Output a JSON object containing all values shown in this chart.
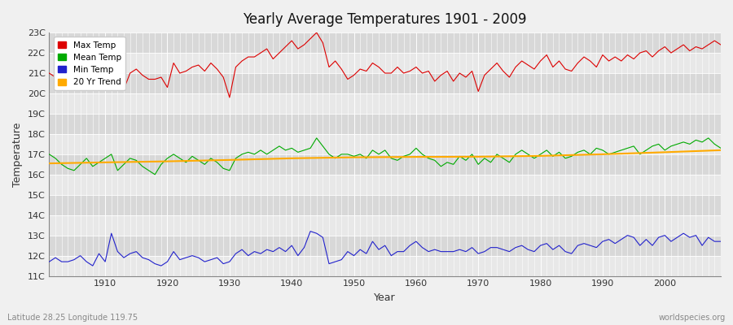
{
  "title": "Yearly Average Temperatures 1901 - 2009",
  "xlabel": "Year",
  "ylabel": "Temperature",
  "xlim": [
    1901,
    2009
  ],
  "ylim": [
    11,
    23
  ],
  "yticks": [
    11,
    12,
    13,
    14,
    15,
    16,
    17,
    18,
    19,
    20,
    21,
    22,
    23
  ],
  "ytick_labels": [
    "11C",
    "12C",
    "13C",
    "14C",
    "15C",
    "16C",
    "17C",
    "18C",
    "19C",
    "20C",
    "21C",
    "22C",
    "23C"
  ],
  "xticks": [
    1910,
    1920,
    1930,
    1940,
    1950,
    1960,
    1970,
    1980,
    1990,
    2000
  ],
  "max_temp_color": "#dd0000",
  "mean_temp_color": "#00aa00",
  "min_temp_color": "#2222cc",
  "trend_color": "#ffaa00",
  "fig_bg_color": "#f0f0f0",
  "plot_bg_color": "#e8e8e8",
  "band_light": "#e8e8e8",
  "band_dark": "#d8d8d8",
  "grid_color": "#ffffff",
  "legend_labels": [
    "Max Temp",
    "Mean Temp",
    "Min Temp",
    "20 Yr Trend"
  ],
  "footer_left": "Latitude 28.25 Longitude 119.75",
  "footer_right": "worldspecies.org",
  "years": [
    1901,
    1902,
    1903,
    1904,
    1905,
    1906,
    1907,
    1908,
    1909,
    1910,
    1911,
    1912,
    1913,
    1914,
    1915,
    1916,
    1917,
    1918,
    1919,
    1920,
    1921,
    1922,
    1923,
    1924,
    1925,
    1926,
    1927,
    1928,
    1929,
    1930,
    1931,
    1932,
    1933,
    1934,
    1935,
    1936,
    1937,
    1938,
    1939,
    1940,
    1941,
    1942,
    1943,
    1944,
    1945,
    1946,
    1947,
    1948,
    1949,
    1950,
    1951,
    1952,
    1953,
    1954,
    1955,
    1956,
    1957,
    1958,
    1959,
    1960,
    1961,
    1962,
    1963,
    1964,
    1965,
    1966,
    1967,
    1968,
    1969,
    1970,
    1971,
    1972,
    1973,
    1974,
    1975,
    1976,
    1977,
    1978,
    1979,
    1980,
    1981,
    1982,
    1983,
    1984,
    1985,
    1986,
    1987,
    1988,
    1989,
    1990,
    1991,
    1992,
    1993,
    1994,
    1995,
    1996,
    1997,
    1998,
    1999,
    2000,
    2001,
    2002,
    2003,
    2004,
    2005,
    2006,
    2007,
    2008,
    2009
  ],
  "max_temp": [
    21.0,
    20.8,
    20.7,
    20.5,
    20.8,
    21.1,
    20.7,
    20.6,
    20.9,
    20.5,
    21.3,
    20.8,
    20.2,
    21.0,
    21.2,
    20.9,
    20.7,
    20.7,
    20.8,
    20.3,
    21.5,
    21.0,
    21.1,
    21.3,
    21.4,
    21.1,
    21.5,
    21.2,
    20.8,
    19.8,
    21.3,
    21.6,
    21.8,
    21.8,
    22.0,
    22.2,
    21.7,
    22.0,
    22.3,
    22.6,
    22.2,
    22.4,
    22.7,
    23.0,
    22.5,
    21.3,
    21.6,
    21.2,
    20.7,
    20.9,
    21.2,
    21.1,
    21.5,
    21.3,
    21.0,
    21.0,
    21.3,
    21.0,
    21.1,
    21.3,
    21.0,
    21.1,
    20.6,
    20.9,
    21.1,
    20.6,
    21.0,
    20.8,
    21.1,
    20.1,
    20.9,
    21.2,
    21.5,
    21.1,
    20.8,
    21.3,
    21.6,
    21.4,
    21.2,
    21.6,
    21.9,
    21.3,
    21.6,
    21.2,
    21.1,
    21.5,
    21.8,
    21.6,
    21.3,
    21.9,
    21.6,
    21.8,
    21.6,
    21.9,
    21.7,
    22.0,
    22.1,
    21.8,
    22.1,
    22.3,
    22.0,
    22.2,
    22.4,
    22.1,
    22.3,
    22.2,
    22.4,
    22.6,
    22.4
  ],
  "mean_temp": [
    17.0,
    16.8,
    16.5,
    16.3,
    16.2,
    16.5,
    16.8,
    16.4,
    16.6,
    16.8,
    17.0,
    16.2,
    16.5,
    16.8,
    16.7,
    16.4,
    16.2,
    16.0,
    16.5,
    16.8,
    17.0,
    16.8,
    16.6,
    16.9,
    16.7,
    16.5,
    16.8,
    16.6,
    16.3,
    16.2,
    16.8,
    17.0,
    17.1,
    17.0,
    17.2,
    17.0,
    17.2,
    17.4,
    17.2,
    17.3,
    17.1,
    17.2,
    17.3,
    17.8,
    17.4,
    17.0,
    16.8,
    17.0,
    17.0,
    16.9,
    17.0,
    16.8,
    17.2,
    17.0,
    17.2,
    16.8,
    16.7,
    16.9,
    17.0,
    17.3,
    17.0,
    16.8,
    16.7,
    16.4,
    16.6,
    16.5,
    16.9,
    16.7,
    17.0,
    16.5,
    16.8,
    16.6,
    17.0,
    16.8,
    16.6,
    17.0,
    17.2,
    17.0,
    16.8,
    17.0,
    17.2,
    16.9,
    17.1,
    16.8,
    16.9,
    17.1,
    17.2,
    17.0,
    17.3,
    17.2,
    17.0,
    17.1,
    17.2,
    17.3,
    17.4,
    17.0,
    17.2,
    17.4,
    17.5,
    17.2,
    17.4,
    17.5,
    17.6,
    17.5,
    17.7,
    17.6,
    17.8,
    17.5,
    17.3
  ],
  "min_temp": [
    11.7,
    11.9,
    11.7,
    11.7,
    11.8,
    12.0,
    11.7,
    11.5,
    12.1,
    11.7,
    13.1,
    12.2,
    11.9,
    12.1,
    12.2,
    11.9,
    11.8,
    11.6,
    11.5,
    11.7,
    12.2,
    11.8,
    11.9,
    12.0,
    11.9,
    11.7,
    11.8,
    11.9,
    11.6,
    11.7,
    12.1,
    12.3,
    12.0,
    12.2,
    12.1,
    12.3,
    12.2,
    12.4,
    12.2,
    12.5,
    12.0,
    12.4,
    13.2,
    13.1,
    12.9,
    11.6,
    11.7,
    11.8,
    12.2,
    12.0,
    12.3,
    12.1,
    12.7,
    12.3,
    12.5,
    12.0,
    12.2,
    12.2,
    12.5,
    12.7,
    12.4,
    12.2,
    12.3,
    12.2,
    12.2,
    12.2,
    12.3,
    12.2,
    12.4,
    12.1,
    12.2,
    12.4,
    12.4,
    12.3,
    12.2,
    12.4,
    12.5,
    12.3,
    12.2,
    12.5,
    12.6,
    12.3,
    12.5,
    12.2,
    12.1,
    12.5,
    12.6,
    12.5,
    12.4,
    12.7,
    12.8,
    12.6,
    12.8,
    13.0,
    12.9,
    12.5,
    12.8,
    12.5,
    12.9,
    13.0,
    12.7,
    12.9,
    13.1,
    12.9,
    13.0,
    12.5,
    12.9,
    12.7,
    12.7
  ],
  "trend_years": [
    1901,
    1910,
    1920,
    1930,
    1940,
    1950,
    1960,
    1970,
    1980,
    1990,
    2000,
    2009
  ],
  "trend_vals": [
    16.55,
    16.6,
    16.65,
    16.72,
    16.8,
    16.85,
    16.87,
    16.88,
    16.92,
    17.0,
    17.1,
    17.2
  ]
}
